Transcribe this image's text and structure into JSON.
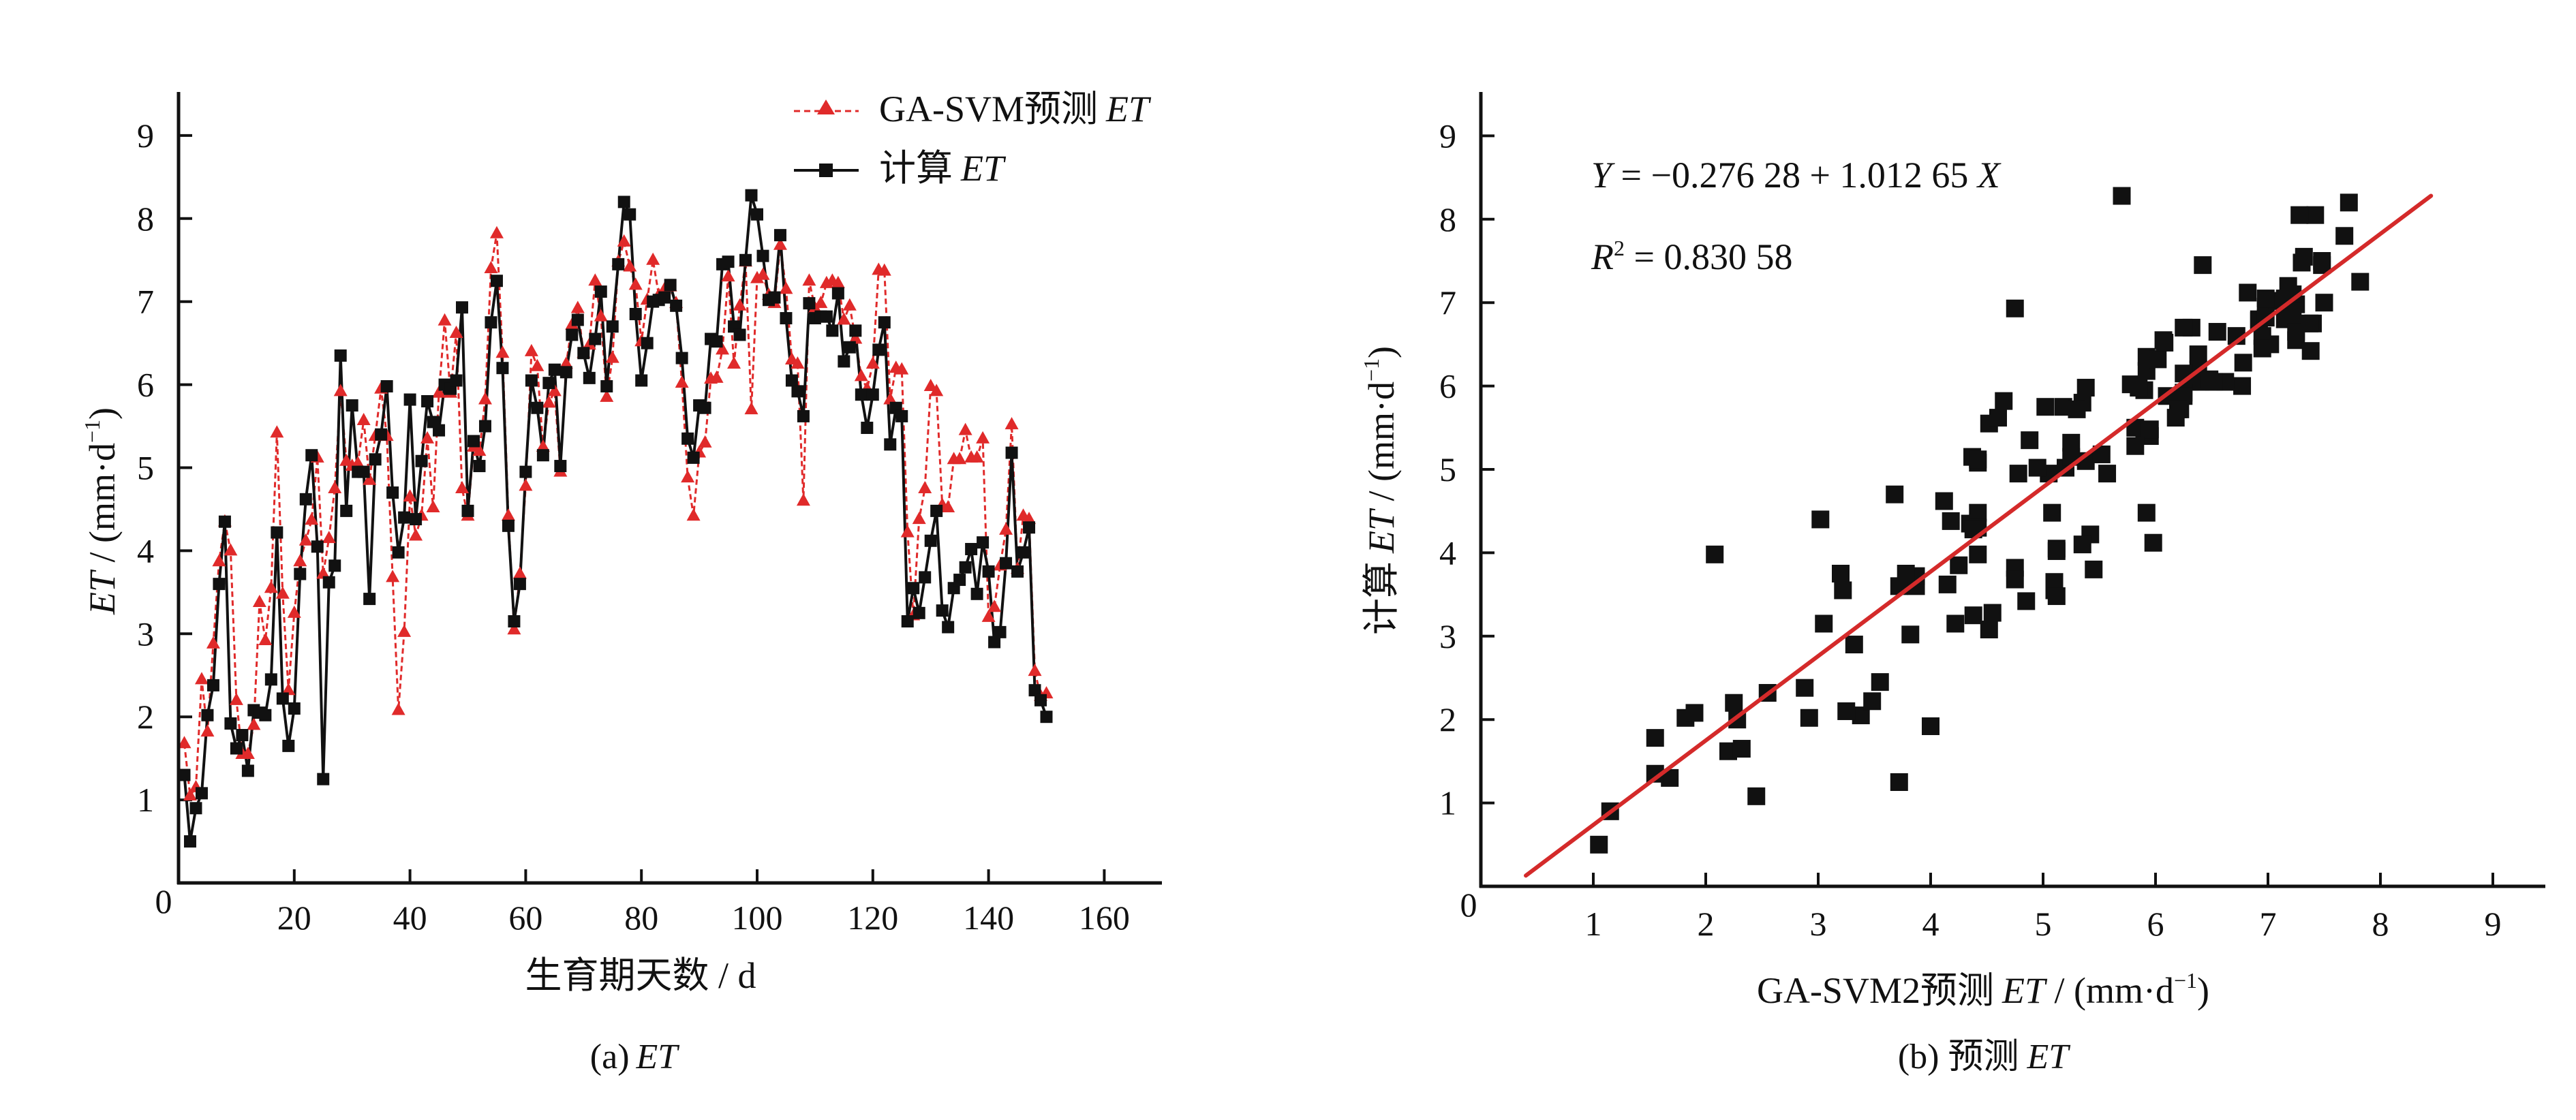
{
  "colors": {
    "predicted": "#e02a2a",
    "computed": "#111111",
    "fit_line": "#d42a2a",
    "axis": "#111111"
  },
  "chart_data": [
    {
      "type": "line",
      "panel": "a",
      "caption_prefix": "(a)",
      "caption_italic": "ET",
      "xlabel": "生育期天数 / d",
      "ylabel_italic": "ET",
      "ylabel_rest": " / (mm·d",
      "ylabel_sup": "−1",
      "ylabel_close": ")",
      "xlim": [
        0,
        170
      ],
      "ylim": [
        0,
        9.5
      ],
      "x_ticks": [
        20,
        40,
        60,
        80,
        100,
        120,
        140,
        160
      ],
      "y_ticks": [
        1,
        2,
        3,
        4,
        5,
        6,
        7,
        8,
        9
      ],
      "origin_label": "0",
      "legend": {
        "position": "top-right",
        "items": [
          {
            "name": "GA-SVM预测",
            "italic": "ET",
            "style": "dashed-triangle"
          },
          {
            "name": "计算",
            "italic": "ET",
            "style": "solid-square"
          }
        ]
      },
      "x": [
        1,
        2,
        3,
        4,
        5,
        6,
        7,
        8,
        9,
        10,
        11,
        12,
        13,
        14,
        15,
        16,
        17,
        18,
        19,
        20,
        21,
        22,
        23,
        24,
        25,
        26,
        27,
        28,
        29,
        30,
        31,
        32,
        33,
        34,
        35,
        36,
        37,
        38,
        39,
        40,
        41,
        42,
        43,
        44,
        45,
        46,
        47,
        48,
        49,
        50,
        51,
        52,
        53,
        54,
        55,
        56,
        57,
        58,
        59,
        60,
        61,
        62,
        63,
        64,
        65,
        66,
        67,
        68,
        69,
        70,
        71,
        72,
        73,
        74,
        75,
        76,
        77,
        78,
        79,
        80,
        81,
        82,
        83,
        84,
        85,
        86,
        87,
        88,
        89,
        90,
        91,
        92,
        93,
        94,
        95,
        96,
        97,
        98,
        99,
        100,
        101,
        102,
        103,
        104,
        105,
        106,
        107,
        108,
        109,
        110,
        111,
        112,
        113,
        114,
        115,
        116,
        117,
        118,
        119,
        120,
        121,
        122,
        123,
        124,
        125,
        126,
        127,
        128,
        129,
        130,
        131,
        132,
        133,
        134,
        135,
        136,
        137,
        138,
        139,
        140,
        141,
        142,
        143,
        144,
        145,
        146,
        147,
        148,
        149,
        150
      ],
      "series": [
        {
          "name": "GA-SVM预测 ET",
          "values": [
            1.68,
            1.05,
            1.15,
            2.45,
            1.82,
            2.88,
            3.87,
            4.35,
            4.0,
            2.2,
            1.55,
            1.55,
            1.9,
            3.38,
            2.92,
            3.55,
            5.42,
            3.48,
            2.32,
            3.25,
            3.87,
            4.12,
            4.37,
            5.12,
            3.72,
            4.15,
            4.75,
            5.92,
            5.08,
            5.02,
            5.05,
            5.57,
            4.85,
            5.38,
            5.95,
            5.38,
            3.68,
            2.08,
            3.02,
            4.65,
            4.18,
            4.42,
            5.35,
            4.52,
            5.9,
            6.77,
            5.9,
            6.62,
            4.75,
            4.42,
            5.25,
            5.2,
            5.82,
            7.4,
            7.82,
            6.38,
            4.42,
            3.05,
            3.72,
            4.78,
            6.4,
            6.22,
            5.25,
            5.78,
            5.92,
            4.95,
            6.25,
            6.72,
            6.92,
            6.38,
            6.48,
            7.25,
            6.82,
            5.85,
            6.32,
            7.48,
            7.72,
            7.42,
            7.2,
            6.52,
            7.02,
            7.5,
            7.08,
            7.15,
            7.18,
            6.98,
            6.02,
            4.88,
            4.42,
            5.18,
            5.3,
            6.07,
            6.08,
            6.42,
            7.3,
            6.25,
            6.95,
            7.48,
            5.7,
            7.28,
            7.32,
            7.08,
            6.98,
            7.68,
            7.15,
            6.3,
            6.25,
            4.6,
            7.25,
            6.92,
            6.98,
            7.22,
            7.25,
            7.22,
            6.78,
            6.95,
            6.55,
            6.1,
            5.95,
            6.25,
            7.38,
            7.37,
            5.82,
            6.2,
            6.18,
            4.22,
            3.22,
            4.38,
            4.75,
            5.98,
            5.92,
            4.55,
            4.52,
            5.1,
            5.1,
            5.45,
            5.12,
            5.12,
            5.35,
            3.2,
            3.32,
            3.82,
            4.25,
            5.52,
            3.78,
            4.42,
            4.38,
            2.55,
            2.25,
            2.28
          ]
        },
        {
          "name": "计算 ET",
          "values": [
            1.3,
            0.5,
            0.9,
            1.08,
            2.02,
            2.38,
            3.6,
            4.35,
            1.92,
            1.62,
            1.78,
            1.35,
            2.08,
            2.05,
            2.02,
            2.45,
            4.22,
            2.22,
            1.65,
            2.1,
            3.72,
            4.62,
            5.15,
            4.05,
            1.25,
            3.62,
            3.82,
            6.35,
            4.48,
            5.75,
            4.95,
            4.95,
            3.42,
            5.1,
            5.4,
            5.98,
            4.7,
            3.98,
            4.4,
            5.82,
            4.38,
            5.08,
            5.8,
            5.55,
            5.45,
            6.0,
            5.95,
            6.05,
            6.93,
            4.48,
            5.32,
            5.02,
            5.5,
            6.75,
            7.25,
            6.2,
            4.3,
            3.15,
            3.6,
            4.95,
            6.05,
            5.72,
            5.15,
            6.02,
            6.18,
            5.02,
            6.15,
            6.6,
            6.78,
            6.38,
            6.08,
            6.55,
            7.12,
            5.98,
            6.7,
            7.45,
            8.2,
            8.05,
            6.85,
            6.05,
            6.5,
            7.0,
            7.02,
            7.05,
            7.2,
            6.95,
            6.32,
            5.35,
            5.12,
            5.75,
            5.72,
            6.55,
            6.52,
            7.45,
            7.48,
            6.7,
            6.6,
            7.5,
            8.28,
            8.05,
            7.55,
            7.02,
            7.05,
            7.8,
            6.8,
            6.05,
            5.92,
            5.62,
            6.98,
            6.8,
            6.82,
            6.82,
            6.65,
            7.1,
            6.28,
            6.45,
            6.65,
            5.88,
            5.48,
            5.88,
            6.42,
            6.75,
            5.28,
            5.72,
            5.62,
            3.15,
            3.55,
            3.25,
            3.68,
            4.12,
            4.48,
            3.28,
            3.08,
            3.55,
            3.65,
            3.8,
            4.02,
            3.48,
            4.1,
            3.75,
            2.9,
            3.02,
            3.85,
            5.18,
            3.75,
            3.98,
            4.28,
            2.32,
            2.2,
            2.0
          ]
        }
      ]
    },
    {
      "type": "scatter",
      "panel": "b",
      "caption_prefix": "(b) 预测",
      "caption_italic": "ET",
      "xlabel_prefix": "GA-SVM2预测",
      "xlabel_italic": "ET",
      "xlabel_rest": " / (mm·d",
      "xlabel_sup": "−1",
      "xlabel_close": ")",
      "ylabel_prefix": "计算",
      "ylabel_italic": "ET",
      "ylabel_rest": " / (mm·d",
      "ylabel_sup": "−1",
      "ylabel_close": ")",
      "xlim": [
        0,
        9.5
      ],
      "ylim": [
        0,
        9.5
      ],
      "x_ticks": [
        1,
        2,
        3,
        4,
        5,
        6,
        7,
        8,
        9
      ],
      "y_ticks": [
        1,
        2,
        3,
        4,
        5,
        6,
        7,
        8,
        9
      ],
      "origin_label": "0",
      "equation_lhs": "Y",
      "equation_mid": " = −0.276 28 + 1.012 65 ",
      "equation_rhs": "X",
      "r2_label": "R",
      "r2_sup": "2",
      "r2_value": " = 0.830 58",
      "fit": {
        "intercept": -0.27628,
        "slope": 1.01265,
        "x_range": [
          0.4,
          8.45
        ]
      },
      "points_source": "pairs of (GA-SVM预测 ET, 计算 ET) from panel a"
    }
  ]
}
